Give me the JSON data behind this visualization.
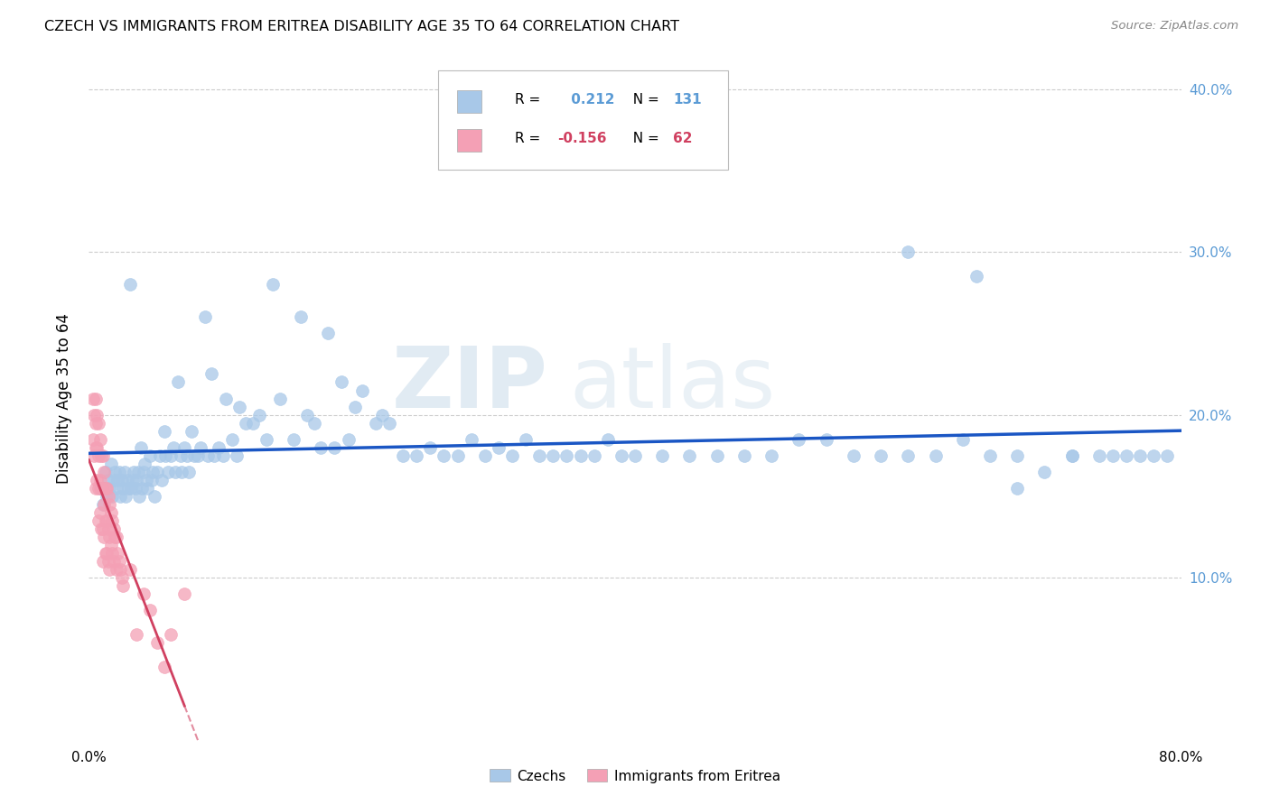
{
  "title": "CZECH VS IMMIGRANTS FROM ERITREA DISABILITY AGE 35 TO 64 CORRELATION CHART",
  "source": "Source: ZipAtlas.com",
  "ylabel": "Disability Age 35 to 64",
  "czech_R": 0.212,
  "czech_N": 131,
  "eritrea_R": -0.156,
  "eritrea_N": 62,
  "xlim": [
    0.0,
    0.8
  ],
  "ylim": [
    0.0,
    0.42
  ],
  "czech_color": "#A8C8E8",
  "eritrea_color": "#F4A0B5",
  "czech_line_color": "#1A56C4",
  "eritrea_line_color": "#D04060",
  "watermark_color": "#D8E8F0",
  "background_color": "#FFFFFF",
  "grid_color": "#CCCCCC",
  "ytick_color": "#5B9BD5",
  "legend_text_blue": "#5B9BD5",
  "legend_text_red": "#D04060",
  "czech_scatter_x": [
    0.008,
    0.01,
    0.012,
    0.013,
    0.014,
    0.015,
    0.016,
    0.017,
    0.018,
    0.019,
    0.02,
    0.021,
    0.022,
    0.023,
    0.024,
    0.025,
    0.026,
    0.027,
    0.028,
    0.029,
    0.03,
    0.031,
    0.032,
    0.033,
    0.034,
    0.035,
    0.036,
    0.037,
    0.038,
    0.039,
    0.04,
    0.041,
    0.042,
    0.043,
    0.045,
    0.046,
    0.047,
    0.048,
    0.05,
    0.052,
    0.053,
    0.055,
    0.056,
    0.058,
    0.06,
    0.062,
    0.063,
    0.065,
    0.067,
    0.068,
    0.07,
    0.072,
    0.073,
    0.075,
    0.077,
    0.08,
    0.082,
    0.085,
    0.087,
    0.09,
    0.092,
    0.095,
    0.098,
    0.1,
    0.105,
    0.108,
    0.11,
    0.115,
    0.12,
    0.125,
    0.13,
    0.135,
    0.14,
    0.15,
    0.155,
    0.16,
    0.165,
    0.17,
    0.175,
    0.18,
    0.185,
    0.19,
    0.195,
    0.2,
    0.21,
    0.215,
    0.22,
    0.23,
    0.24,
    0.25,
    0.26,
    0.27,
    0.28,
    0.29,
    0.3,
    0.31,
    0.32,
    0.33,
    0.34,
    0.35,
    0.36,
    0.37,
    0.38,
    0.39,
    0.4,
    0.42,
    0.44,
    0.46,
    0.48,
    0.5,
    0.52,
    0.54,
    0.56,
    0.58,
    0.6,
    0.62,
    0.64,
    0.66,
    0.68,
    0.7,
    0.72,
    0.74,
    0.76,
    0.78,
    0.6,
    0.65,
    0.68,
    0.72,
    0.75,
    0.77,
    0.79
  ],
  "czech_scatter_y": [
    0.155,
    0.145,
    0.165,
    0.15,
    0.16,
    0.155,
    0.17,
    0.15,
    0.16,
    0.165,
    0.155,
    0.16,
    0.165,
    0.15,
    0.16,
    0.155,
    0.165,
    0.15,
    0.16,
    0.155,
    0.28,
    0.155,
    0.16,
    0.165,
    0.155,
    0.16,
    0.165,
    0.15,
    0.18,
    0.155,
    0.165,
    0.17,
    0.16,
    0.155,
    0.175,
    0.16,
    0.165,
    0.15,
    0.165,
    0.175,
    0.16,
    0.19,
    0.175,
    0.165,
    0.175,
    0.18,
    0.165,
    0.22,
    0.175,
    0.165,
    0.18,
    0.175,
    0.165,
    0.19,
    0.175,
    0.175,
    0.18,
    0.26,
    0.175,
    0.225,
    0.175,
    0.18,
    0.175,
    0.21,
    0.185,
    0.175,
    0.205,
    0.195,
    0.195,
    0.2,
    0.185,
    0.28,
    0.21,
    0.185,
    0.26,
    0.2,
    0.195,
    0.18,
    0.25,
    0.18,
    0.22,
    0.185,
    0.205,
    0.215,
    0.195,
    0.2,
    0.195,
    0.175,
    0.175,
    0.18,
    0.175,
    0.175,
    0.185,
    0.175,
    0.18,
    0.175,
    0.185,
    0.175,
    0.175,
    0.175,
    0.175,
    0.175,
    0.185,
    0.175,
    0.175,
    0.175,
    0.175,
    0.175,
    0.175,
    0.175,
    0.185,
    0.185,
    0.175,
    0.175,
    0.175,
    0.175,
    0.185,
    0.175,
    0.175,
    0.165,
    0.175,
    0.175,
    0.175,
    0.175,
    0.3,
    0.285,
    0.155,
    0.175,
    0.175,
    0.175,
    0.175
  ],
  "eritrea_scatter_x": [
    0.003,
    0.003,
    0.004,
    0.004,
    0.005,
    0.005,
    0.005,
    0.005,
    0.006,
    0.006,
    0.006,
    0.007,
    0.007,
    0.007,
    0.007,
    0.008,
    0.008,
    0.008,
    0.009,
    0.009,
    0.009,
    0.01,
    0.01,
    0.01,
    0.01,
    0.011,
    0.011,
    0.011,
    0.012,
    0.012,
    0.012,
    0.013,
    0.013,
    0.013,
    0.014,
    0.014,
    0.014,
    0.015,
    0.015,
    0.015,
    0.016,
    0.016,
    0.017,
    0.017,
    0.018,
    0.018,
    0.019,
    0.02,
    0.02,
    0.021,
    0.022,
    0.023,
    0.024,
    0.025,
    0.03,
    0.035,
    0.04,
    0.045,
    0.05,
    0.055,
    0.06,
    0.07
  ],
  "eritrea_scatter_y": [
    0.21,
    0.185,
    0.2,
    0.175,
    0.21,
    0.195,
    0.18,
    0.155,
    0.2,
    0.18,
    0.16,
    0.195,
    0.175,
    0.155,
    0.135,
    0.185,
    0.16,
    0.14,
    0.175,
    0.155,
    0.13,
    0.175,
    0.155,
    0.13,
    0.11,
    0.165,
    0.145,
    0.125,
    0.155,
    0.135,
    0.115,
    0.155,
    0.135,
    0.115,
    0.15,
    0.13,
    0.11,
    0.145,
    0.125,
    0.105,
    0.14,
    0.12,
    0.135,
    0.115,
    0.13,
    0.11,
    0.125,
    0.125,
    0.105,
    0.115,
    0.11,
    0.105,
    0.1,
    0.095,
    0.105,
    0.065,
    0.09,
    0.08,
    0.06,
    0.045,
    0.065,
    0.09
  ]
}
